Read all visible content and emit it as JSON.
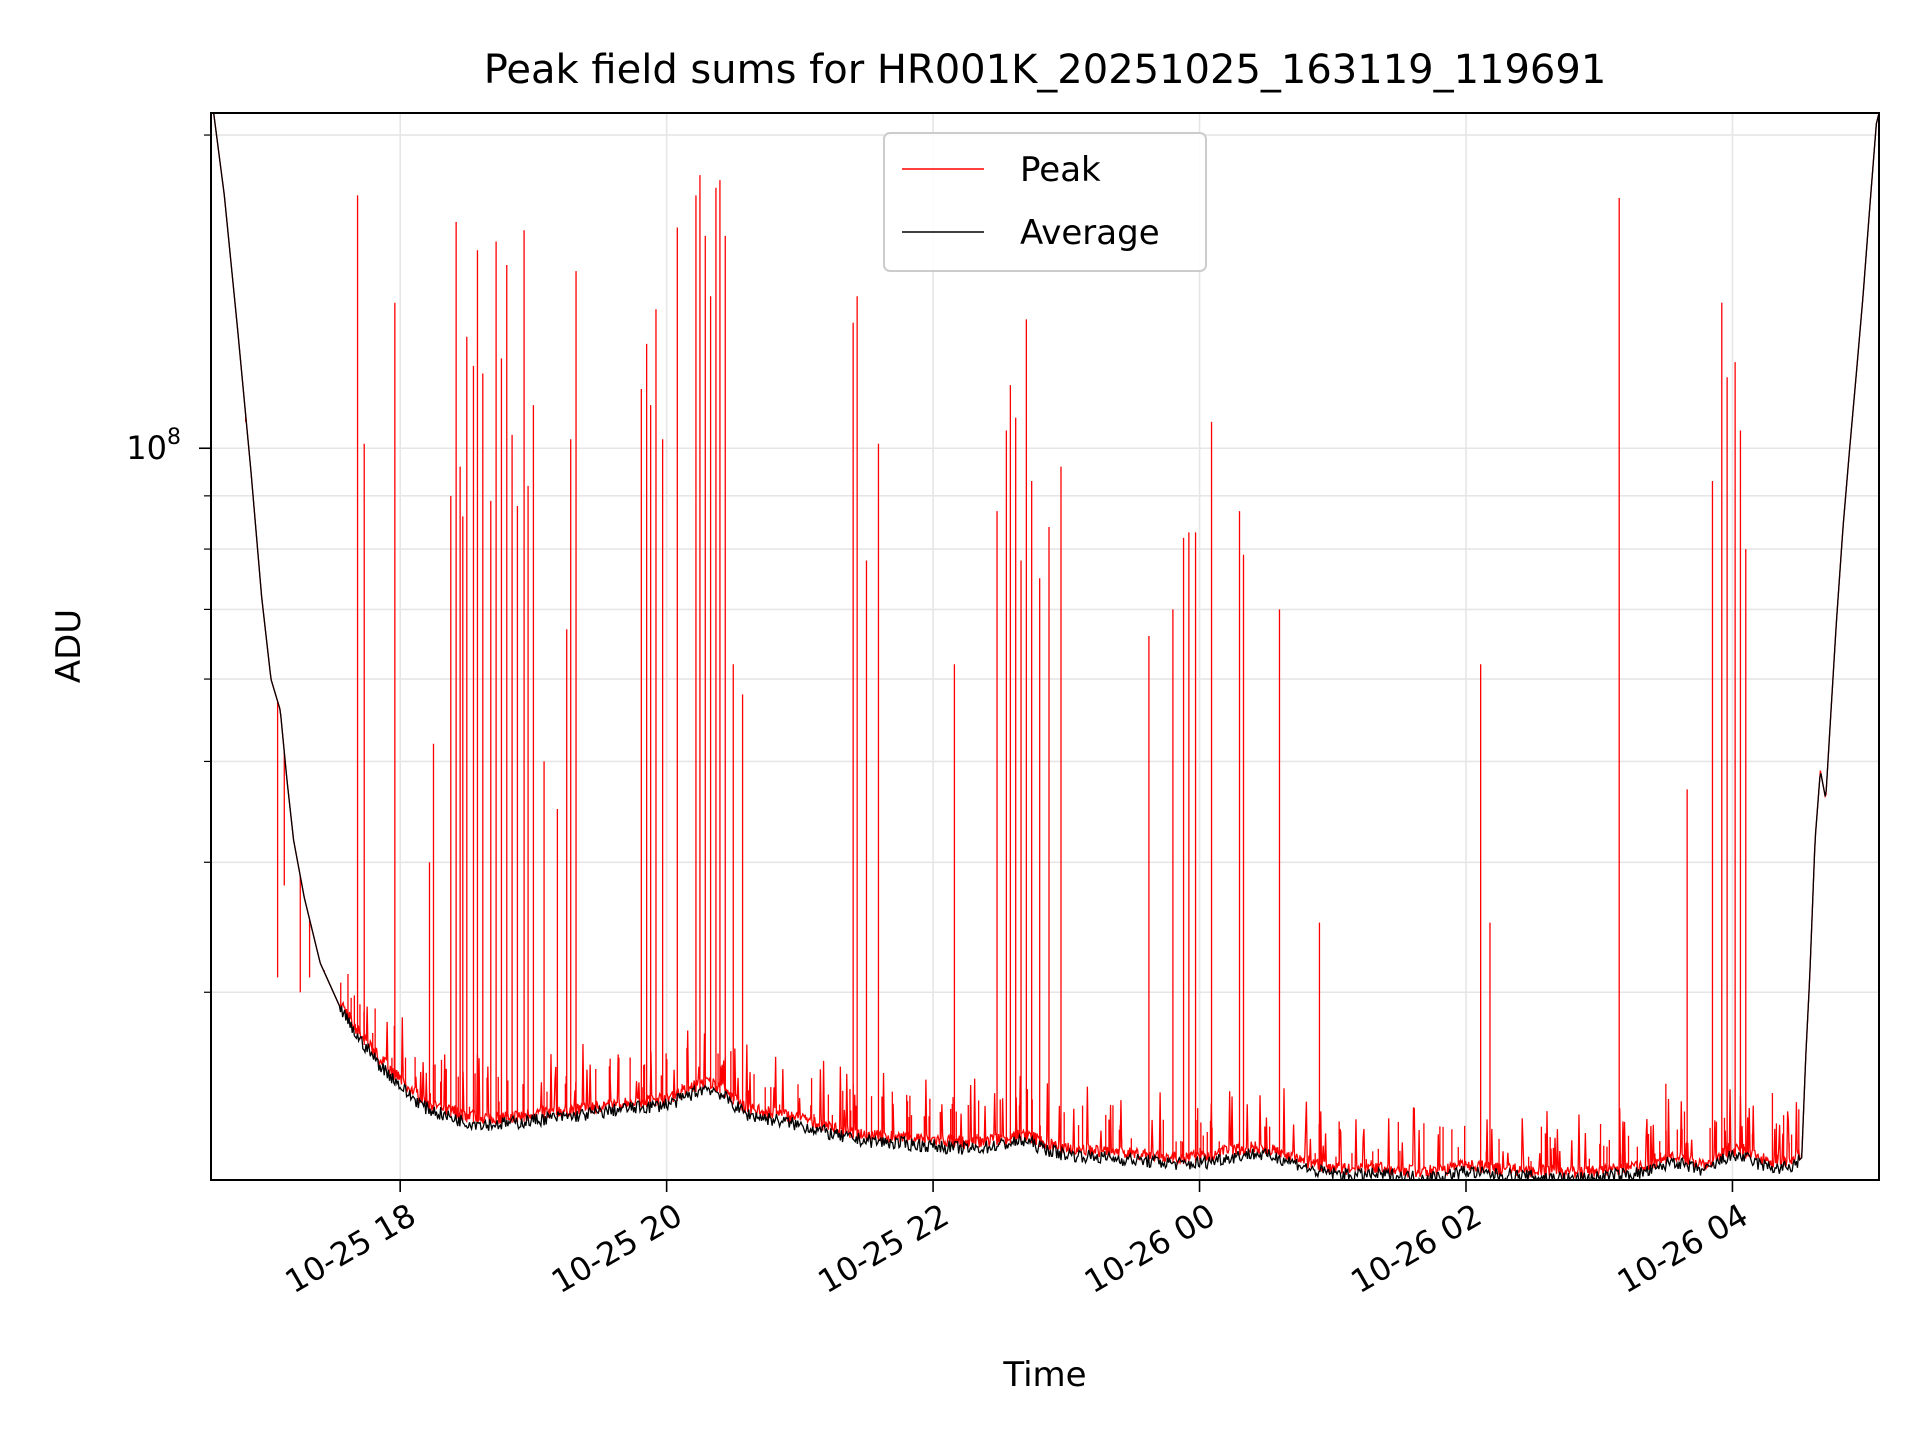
{
  "chart_data": {
    "type": "line",
    "title": "Peak field sums for HR001K_20251025_163119_119691",
    "xlabel": "Time",
    "ylabel": "ADU",
    "y_scale": "log",
    "ylim": [
      19800000,
      210000000
    ],
    "xlim_hours_from_10_25_00": [
      16.58,
      29.1
    ],
    "x_ticks": [
      {
        "hour": 18,
        "label": "10-25 18"
      },
      {
        "hour": 20,
        "label": "10-25 20"
      },
      {
        "hour": 22,
        "label": "10-25 22"
      },
      {
        "hour": 24,
        "label": "10-26 00"
      },
      {
        "hour": 26,
        "label": "10-26 02"
      },
      {
        "hour": 28,
        "label": "10-26 04"
      }
    ],
    "y_tick_major": {
      "mantissa": "10",
      "exponent": "8",
      "value": 100000000
    },
    "y_minor_gridlines": [
      30000000,
      40000000,
      50000000,
      60000000,
      70000000,
      80000000,
      90000000,
      200000000
    ],
    "grid": true,
    "legend_position": "top-center",
    "colors": {
      "peak": "#ff0000",
      "average": "#000000",
      "grid": "#e6e6e6"
    },
    "series": [
      {
        "name": "Average",
        "color": "#000000",
        "points": [
          [
            16.6,
            210000000
          ],
          [
            16.68,
            175000000
          ],
          [
            16.78,
            130000000
          ],
          [
            16.88,
            95000000
          ],
          [
            16.96,
            72000000
          ],
          [
            17.03,
            60000000
          ],
          [
            17.1,
            56000000
          ],
          [
            17.15,
            48000000
          ],
          [
            17.2,
            42000000
          ],
          [
            17.28,
            37000000
          ],
          [
            17.4,
            32000000
          ],
          [
            17.55,
            29000000
          ],
          [
            17.65,
            27500000
          ],
          [
            17.75,
            26500000
          ],
          [
            17.85,
            25500000
          ],
          [
            17.95,
            24800000
          ],
          [
            18.05,
            24000000
          ],
          [
            18.2,
            23200000
          ],
          [
            18.35,
            22800000
          ],
          [
            18.5,
            22500000
          ],
          [
            18.7,
            22400000
          ],
          [
            18.9,
            22500000
          ],
          [
            19.1,
            22700000
          ],
          [
            19.3,
            22800000
          ],
          [
            19.5,
            23000000
          ],
          [
            19.7,
            23200000
          ],
          [
            19.9,
            23300000
          ],
          [
            20.05,
            23500000
          ],
          [
            20.2,
            24000000
          ],
          [
            20.3,
            24300000
          ],
          [
            20.4,
            24000000
          ],
          [
            20.5,
            23400000
          ],
          [
            20.6,
            22900000
          ],
          [
            20.75,
            22700000
          ],
          [
            20.9,
            22500000
          ],
          [
            21.1,
            22200000
          ],
          [
            21.3,
            21800000
          ],
          [
            21.5,
            21600000
          ],
          [
            21.7,
            21500000
          ],
          [
            21.9,
            21400000
          ],
          [
            22.1,
            21300000
          ],
          [
            22.3,
            21200000
          ],
          [
            22.5,
            21400000
          ],
          [
            22.7,
            21600000
          ],
          [
            22.8,
            21300000
          ],
          [
            22.95,
            21000000
          ],
          [
            23.1,
            20900000
          ],
          [
            23.3,
            20800000
          ],
          [
            23.5,
            20700000
          ],
          [
            23.7,
            20600000
          ],
          [
            23.9,
            20500000
          ],
          [
            24.05,
            20600000
          ],
          [
            24.2,
            20800000
          ],
          [
            24.4,
            21000000
          ],
          [
            24.6,
            20800000
          ],
          [
            24.75,
            20500000
          ],
          [
            24.85,
            20200000
          ],
          [
            25.0,
            20100000
          ],
          [
            25.15,
            20000000
          ],
          [
            25.3,
            20050000
          ],
          [
            25.45,
            20000000
          ],
          [
            25.55,
            19950000
          ],
          [
            25.7,
            19900000
          ],
          [
            25.85,
            20000000
          ],
          [
            26.0,
            20200000
          ],
          [
            26.1,
            20100000
          ],
          [
            26.3,
            20000000
          ],
          [
            26.5,
            19950000
          ],
          [
            26.7,
            19900000
          ],
          [
            26.8,
            19850000
          ],
          [
            26.95,
            19900000
          ],
          [
            27.1,
            20000000
          ],
          [
            27.3,
            20100000
          ],
          [
            27.45,
            20300000
          ],
          [
            27.55,
            20700000
          ],
          [
            27.65,
            20400000
          ],
          [
            27.8,
            20200000
          ],
          [
            27.95,
            20800000
          ],
          [
            28.05,
            20900000
          ],
          [
            28.2,
            20500000
          ],
          [
            28.35,
            20300000
          ],
          [
            28.45,
            20400000
          ],
          [
            28.52,
            20800000
          ],
          [
            28.55,
            26000000
          ],
          [
            28.58,
            31000000
          ],
          [
            28.62,
            42000000
          ],
          [
            28.66,
            49000000
          ],
          [
            28.7,
            46000000
          ],
          [
            28.74,
            56000000
          ],
          [
            28.78,
            68000000
          ],
          [
            28.83,
            84000000
          ],
          [
            28.88,
            100000000
          ],
          [
            28.93,
            118000000
          ],
          [
            28.98,
            140000000
          ],
          [
            29.03,
            170000000
          ],
          [
            29.08,
            205000000
          ],
          [
            29.1,
            210000000
          ]
        ]
      },
      {
        "name": "Peak",
        "color": "#ff0000",
        "spikes": [
          [
            16.84,
            106000000
          ],
          [
            17.08,
            31000000
          ],
          [
            17.13,
            38000000
          ],
          [
            17.25,
            30000000
          ],
          [
            17.32,
            31000000
          ],
          [
            17.43,
            31500000
          ],
          [
            17.68,
            175000000
          ],
          [
            17.73,
            101000000
          ],
          [
            17.96,
            138000000
          ],
          [
            18.22,
            40000000
          ],
          [
            18.25,
            52000000
          ],
          [
            18.38,
            90000000
          ],
          [
            18.42,
            165000000
          ],
          [
            18.45,
            96000000
          ],
          [
            18.47,
            86000000
          ],
          [
            18.5,
            128000000
          ],
          [
            18.55,
            120000000
          ],
          [
            18.58,
            155000000
          ],
          [
            18.62,
            118000000
          ],
          [
            18.68,
            89000000
          ],
          [
            18.72,
            158000000
          ],
          [
            18.76,
            122000000
          ],
          [
            18.8,
            150000000
          ],
          [
            18.84,
            103000000
          ],
          [
            18.88,
            88000000
          ],
          [
            18.93,
            162000000
          ],
          [
            18.96,
            92000000
          ],
          [
            19.0,
            110000000
          ],
          [
            19.08,
            50000000
          ],
          [
            19.18,
            45000000
          ],
          [
            19.25,
            67000000
          ],
          [
            19.28,
            102000000
          ],
          [
            19.32,
            148000000
          ],
          [
            19.81,
            114000000
          ],
          [
            19.85,
            126000000
          ],
          [
            19.88,
            110000000
          ],
          [
            19.92,
            136000000
          ],
          [
            19.97,
            102000000
          ],
          [
            20.08,
            163000000
          ],
          [
            20.22,
            175000000
          ],
          [
            20.25,
            183000000
          ],
          [
            20.29,
            160000000
          ],
          [
            20.33,
            140000000
          ],
          [
            20.37,
            178000000
          ],
          [
            20.4,
            181000000
          ],
          [
            20.44,
            160000000
          ],
          [
            20.5,
            62000000
          ],
          [
            20.57,
            58000000
          ],
          [
            21.4,
            132000000
          ],
          [
            21.43,
            140000000
          ],
          [
            21.5,
            78000000
          ],
          [
            21.59,
            101000000
          ],
          [
            22.16,
            62000000
          ],
          [
            22.48,
            87000000
          ],
          [
            22.55,
            104000000
          ],
          [
            22.58,
            115000000
          ],
          [
            22.62,
            107000000
          ],
          [
            22.66,
            78000000
          ],
          [
            22.7,
            133000000
          ],
          [
            22.74,
            93000000
          ],
          [
            22.8,
            75000000
          ],
          [
            22.87,
            84000000
          ],
          [
            22.96,
            96000000
          ],
          [
            23.62,
            66000000
          ],
          [
            23.8,
            70000000
          ],
          [
            23.88,
            82000000
          ],
          [
            23.92,
            83000000
          ],
          [
            23.97,
            83000000
          ],
          [
            24.09,
            106000000
          ],
          [
            24.3,
            87000000
          ],
          [
            24.33,
            79000000
          ],
          [
            24.6,
            70000000
          ],
          [
            24.9,
            35000000
          ],
          [
            26.11,
            62000000
          ],
          [
            26.18,
            35000000
          ],
          [
            27.15,
            174000000
          ],
          [
            27.5,
            24500000
          ],
          [
            27.66,
            47000000
          ],
          [
            27.85,
            93000000
          ],
          [
            27.92,
            138000000
          ],
          [
            27.96,
            117000000
          ],
          [
            28.02,
            121000000
          ],
          [
            28.06,
            104000000
          ],
          [
            28.1,
            80000000
          ],
          [
            28.3,
            24000000
          ]
        ]
      }
    ]
  }
}
